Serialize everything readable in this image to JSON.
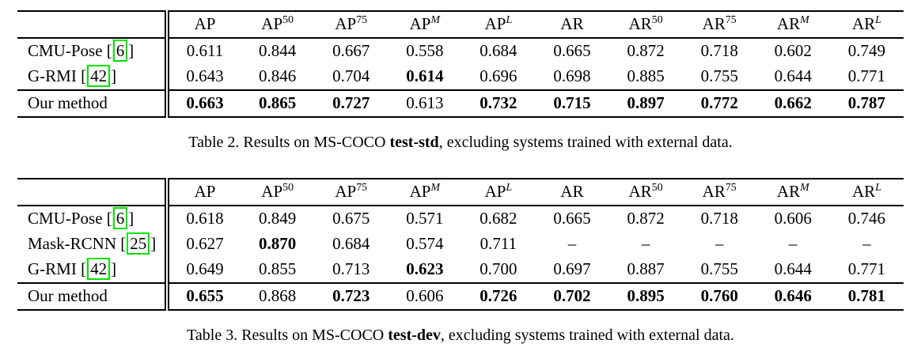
{
  "punct": {
    "cite_open": "[",
    "cite_close": "]"
  },
  "colors": {
    "citation_box": "#00e400",
    "text": "#000000",
    "background": "#ffffff"
  },
  "tables": [
    {
      "name": "results-test-std",
      "columns": [
        {
          "base": "AP",
          "sup": "",
          "italic": false
        },
        {
          "base": "AP",
          "sup": "50",
          "italic": false
        },
        {
          "base": "AP",
          "sup": "75",
          "italic": false
        },
        {
          "base": "AP",
          "sup": "M",
          "italic": true
        },
        {
          "base": "AP",
          "sup": "L",
          "italic": true
        },
        {
          "base": "AR",
          "sup": "",
          "italic": false
        },
        {
          "base": "AR",
          "sup": "50",
          "italic": false
        },
        {
          "base": "AR",
          "sup": "75",
          "italic": false
        },
        {
          "base": "AR",
          "sup": "M",
          "italic": true
        },
        {
          "base": "AR",
          "sup": "L",
          "italic": true
        }
      ],
      "rows": [
        {
          "label": "CMU-Pose",
          "cite": "6",
          "values": [
            "0.611",
            "0.844",
            "0.667",
            "0.558",
            "0.684",
            "0.665",
            "0.872",
            "0.718",
            "0.602",
            "0.749"
          ],
          "bold": [
            false,
            false,
            false,
            false,
            false,
            false,
            false,
            false,
            false,
            false
          ]
        },
        {
          "label": "G-RMI",
          "cite": "42",
          "values": [
            "0.643",
            "0.846",
            "0.704",
            "0.614",
            "0.696",
            "0.698",
            "0.885",
            "0.755",
            "0.644",
            "0.771"
          ],
          "bold": [
            false,
            false,
            false,
            true,
            false,
            false,
            false,
            false,
            false,
            false
          ]
        },
        {
          "label": "Our method",
          "values": [
            "0.663",
            "0.865",
            "0.727",
            "0.613",
            "0.732",
            "0.715",
            "0.897",
            "0.772",
            "0.662",
            "0.787"
          ],
          "bold": [
            true,
            true,
            true,
            false,
            true,
            true,
            true,
            true,
            true,
            true
          ]
        }
      ],
      "caption": {
        "prefix": "Table 2. Results on MS-COCO ",
        "highlight": "test-std",
        "suffix": ", excluding systems trained with external data."
      }
    },
    {
      "name": "results-test-dev",
      "columns": [
        {
          "base": "AP",
          "sup": "",
          "italic": false
        },
        {
          "base": "AP",
          "sup": "50",
          "italic": false
        },
        {
          "base": "AP",
          "sup": "75",
          "italic": false
        },
        {
          "base": "AP",
          "sup": "M",
          "italic": true
        },
        {
          "base": "AP",
          "sup": "L",
          "italic": true
        },
        {
          "base": "AR",
          "sup": "",
          "italic": false
        },
        {
          "base": "AR",
          "sup": "50",
          "italic": false
        },
        {
          "base": "AR",
          "sup": "75",
          "italic": false
        },
        {
          "base": "AR",
          "sup": "M",
          "italic": true
        },
        {
          "base": "AR",
          "sup": "L",
          "italic": true
        }
      ],
      "rows": [
        {
          "label": "CMU-Pose",
          "cite": "6",
          "values": [
            "0.618",
            "0.849",
            "0.675",
            "0.571",
            "0.682",
            "0.665",
            "0.872",
            "0.718",
            "0.606",
            "0.746"
          ],
          "bold": [
            false,
            false,
            false,
            false,
            false,
            false,
            false,
            false,
            false,
            false
          ]
        },
        {
          "label": "Mask-RCNN",
          "cite": "25",
          "values": [
            "0.627",
            "0.870",
            "0.684",
            "0.574",
            "0.711",
            "–",
            "–",
            "–",
            "–",
            "–"
          ],
          "bold": [
            false,
            true,
            false,
            false,
            false,
            false,
            false,
            false,
            false,
            false
          ]
        },
        {
          "label": "G-RMI",
          "cite": "42",
          "values": [
            "0.649",
            "0.855",
            "0.713",
            "0.623",
            "0.700",
            "0.697",
            "0.887",
            "0.755",
            "0.644",
            "0.771"
          ],
          "bold": [
            false,
            false,
            false,
            true,
            false,
            false,
            false,
            false,
            false,
            false
          ]
        },
        {
          "label": "Our method",
          "values": [
            "0.655",
            "0.868",
            "0.723",
            "0.606",
            "0.726",
            "0.702",
            "0.895",
            "0.760",
            "0.646",
            "0.781"
          ],
          "bold": [
            true,
            false,
            true,
            false,
            true,
            true,
            true,
            true,
            true,
            true
          ]
        }
      ],
      "caption": {
        "prefix": "Table 3. Results on MS-COCO ",
        "highlight": "test-dev",
        "suffix": ", excluding systems trained with external data."
      }
    }
  ]
}
